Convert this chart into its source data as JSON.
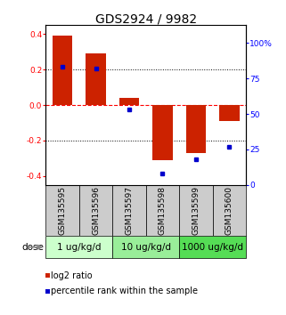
{
  "title": "GDS2924 / 9982",
  "samples": [
    "GSM135595",
    "GSM135596",
    "GSM135597",
    "GSM135598",
    "GSM135599",
    "GSM135600"
  ],
  "log2_ratio": [
    0.39,
    0.29,
    0.04,
    -0.31,
    -0.27,
    -0.09
  ],
  "percentile_rank": [
    83,
    82,
    53,
    8,
    18,
    27
  ],
  "doses": [
    {
      "label": "1 ug/kg/d",
      "samples": [
        0,
        1
      ],
      "color": "#ccffcc"
    },
    {
      "label": "10 ug/kg/d",
      "samples": [
        2,
        3
      ],
      "color": "#99ee99"
    },
    {
      "label": "1000 ug/kg/d",
      "samples": [
        4,
        5
      ],
      "color": "#55dd55"
    }
  ],
  "bar_color": "#cc2200",
  "dot_color": "#0000cc",
  "yticks_left": [
    -0.4,
    -0.2,
    0.0,
    0.2,
    0.4
  ],
  "yticks_right": [
    0,
    25,
    50,
    75,
    100
  ],
  "ylim_left": [
    -0.45,
    0.45
  ],
  "ylim_right": [
    0,
    112.5
  ],
  "dose_label": "dose",
  "legend_log2": "log2 ratio",
  "legend_pct": "percentile rank within the sample",
  "sample_bg_color": "#cccccc",
  "title_fontsize": 10,
  "tick_fontsize": 6.5,
  "dose_fontsize": 7.5,
  "legend_fontsize": 7
}
